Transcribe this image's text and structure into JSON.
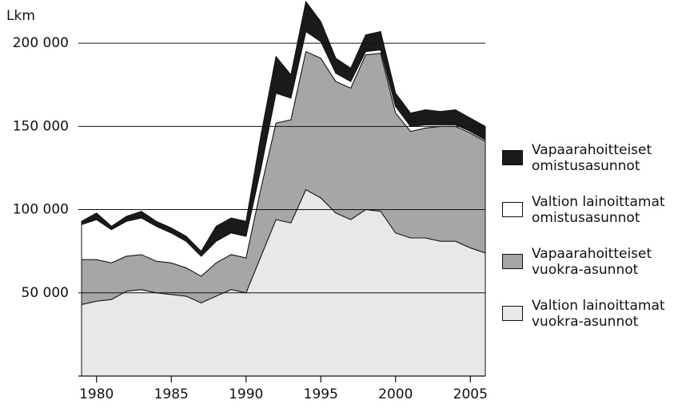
{
  "chart_data": {
    "type": "stacked_area",
    "y_label": "Lkm",
    "x": [
      1979,
      1980,
      1981,
      1982,
      1983,
      1984,
      1985,
      1986,
      1987,
      1988,
      1989,
      1990,
      1991,
      1992,
      1993,
      1994,
      1995,
      1996,
      1997,
      1998,
      1999,
      2000,
      2001,
      2002,
      2003,
      2004,
      2005,
      2006
    ],
    "series": [
      {
        "name": "Valtion lainoittamat vuokra-asunnot",
        "color": "#e8e8e8",
        "values": [
          43000,
          45000,
          46000,
          51000,
          52000,
          50000,
          49000,
          48000,
          44000,
          48000,
          52000,
          50000,
          72000,
          94000,
          92000,
          112000,
          107000,
          98000,
          94000,
          100000,
          99000,
          86000,
          83000,
          83000,
          81000,
          81000,
          77000,
          74000
        ]
      },
      {
        "name": "Vapaarahoitteiset vuokra-asunnot",
        "color": "#a6a6a6",
        "values": [
          27000,
          25000,
          22000,
          21000,
          21000,
          19000,
          19000,
          17000,
          16000,
          20000,
          21000,
          21000,
          41000,
          58000,
          62000,
          83000,
          84000,
          79000,
          79000,
          93000,
          95000,
          72000,
          64000,
          66000,
          69000,
          69000,
          69000,
          67000
        ]
      },
      {
        "name": "Valtion lainoittamat omistusasunnot",
        "color": "#ffffff",
        "values": [
          21000,
          24000,
          20000,
          21000,
          22000,
          21000,
          18000,
          16000,
          12000,
          13000,
          13000,
          13000,
          12000,
          18000,
          13000,
          12000,
          10000,
          5000,
          4000,
          2000,
          2000,
          4000,
          3000,
          2000,
          1000,
          1000,
          1000,
          1000
        ]
      },
      {
        "name": "Vapaarahoitteiset omistusasunnot",
        "color": "#1a1a1a",
        "values": [
          2000,
          4000,
          2000,
          3000,
          4000,
          3000,
          3000,
          3000,
          3000,
          9000,
          9000,
          9000,
          20000,
          22000,
          14000,
          18000,
          12000,
          9000,
          8000,
          10000,
          11000,
          8000,
          8000,
          9000,
          8000,
          9000,
          8000,
          8000
        ]
      }
    ],
    "xlim": [
      1979,
      2006
    ],
    "ylim": [
      0,
      225000
    ],
    "xticks": [
      1980,
      1985,
      1990,
      1995,
      2000,
      2005
    ],
    "yticks": [
      {
        "value": 50000,
        "label": "50 000"
      },
      {
        "value": 100000,
        "label": "100 000"
      },
      {
        "value": 150000,
        "label": "150 000"
      },
      {
        "value": 200000,
        "label": "200 000"
      }
    ],
    "grid": true,
    "legend": "right"
  }
}
